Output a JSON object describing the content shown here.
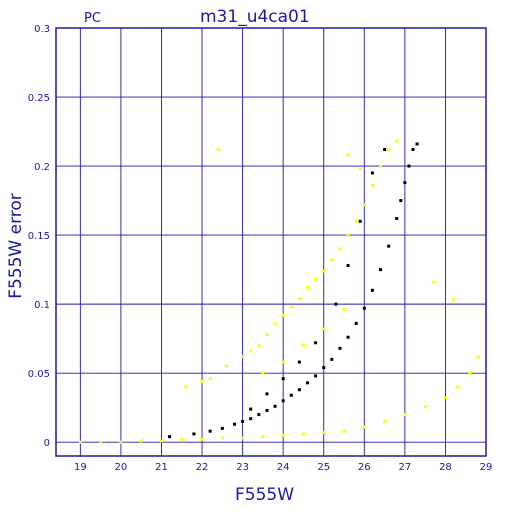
{
  "chart_data": {
    "type": "scatter",
    "title": "m31_u4ca01",
    "corner_label": "PC",
    "xlabel": "F555W",
    "ylabel": "F555W error",
    "xlim": [
      18.4,
      29.0
    ],
    "ylim": [
      -0.01,
      0.3
    ],
    "x_ticks": [
      19,
      20,
      21,
      22,
      23,
      24,
      25,
      26,
      27,
      28,
      29
    ],
    "y_ticks": [
      0,
      0.05,
      0.1,
      0.15,
      0.2,
      0.25,
      0.3
    ],
    "y_tick_labels": [
      "0",
      "0.05",
      "0.1",
      "0.15",
      "0.2",
      "0.25",
      "0.3"
    ],
    "grid": true,
    "colors": {
      "axis": "#1a1aa6",
      "grid": "#1a1aa6",
      "black_points": "#000000",
      "yellow_points": "#ffff00"
    },
    "series": [
      {
        "color": "black",
        "points": [
          [
            21.2,
            0.004
          ],
          [
            21.8,
            0.006
          ],
          [
            22.2,
            0.008
          ],
          [
            22.5,
            0.01
          ],
          [
            22.8,
            0.013
          ],
          [
            23.0,
            0.015
          ],
          [
            23.2,
            0.017
          ],
          [
            23.4,
            0.02
          ],
          [
            23.6,
            0.023
          ],
          [
            23.8,
            0.026
          ],
          [
            24.0,
            0.03
          ],
          [
            24.2,
            0.034
          ],
          [
            24.4,
            0.038
          ],
          [
            24.6,
            0.043
          ],
          [
            24.8,
            0.048
          ],
          [
            25.0,
            0.054
          ],
          [
            25.2,
            0.06
          ],
          [
            25.4,
            0.068
          ],
          [
            25.6,
            0.076
          ],
          [
            25.8,
            0.086
          ],
          [
            26.0,
            0.097
          ],
          [
            26.2,
            0.11
          ],
          [
            26.4,
            0.125
          ],
          [
            26.6,
            0.142
          ],
          [
            26.8,
            0.162
          ],
          [
            26.9,
            0.175
          ],
          [
            27.0,
            0.188
          ],
          [
            27.1,
            0.2
          ],
          [
            27.2,
            0.212
          ],
          [
            27.3,
            0.216
          ],
          [
            26.5,
            0.212
          ],
          [
            26.2,
            0.195
          ],
          [
            25.9,
            0.16
          ],
          [
            25.6,
            0.128
          ],
          [
            25.3,
            0.1
          ],
          [
            24.8,
            0.072
          ],
          [
            24.4,
            0.058
          ],
          [
            24.0,
            0.046
          ],
          [
            23.6,
            0.035
          ],
          [
            23.2,
            0.024
          ]
        ]
      },
      {
        "color": "yellow",
        "points": [
          [
            19.0,
            0.0
          ],
          [
            19.5,
            0.0
          ],
          [
            20.0,
            0.0
          ],
          [
            20.5,
            0.001
          ],
          [
            21.0,
            0.001
          ],
          [
            21.5,
            0.002
          ],
          [
            22.0,
            0.002
          ],
          [
            22.5,
            0.003
          ],
          [
            23.0,
            0.003
          ],
          [
            23.5,
            0.004
          ],
          [
            24.0,
            0.005
          ],
          [
            24.5,
            0.006
          ],
          [
            25.0,
            0.007
          ],
          [
            25.5,
            0.008
          ],
          [
            26.0,
            0.011
          ],
          [
            26.5,
            0.015
          ],
          [
            27.0,
            0.02
          ],
          [
            27.5,
            0.026
          ],
          [
            28.0,
            0.032
          ],
          [
            28.3,
            0.04
          ],
          [
            28.6,
            0.05
          ],
          [
            28.8,
            0.062
          ],
          [
            21.6,
            0.04
          ],
          [
            22.0,
            0.044
          ],
          [
            22.2,
            0.046
          ],
          [
            22.4,
            0.212
          ],
          [
            22.6,
            0.055
          ],
          [
            23.0,
            0.062
          ],
          [
            23.2,
            0.066
          ],
          [
            23.4,
            0.07
          ],
          [
            23.6,
            0.078
          ],
          [
            23.8,
            0.086
          ],
          [
            24.0,
            0.092
          ],
          [
            24.2,
            0.098
          ],
          [
            24.4,
            0.104
          ],
          [
            24.6,
            0.112
          ],
          [
            24.8,
            0.118
          ],
          [
            25.0,
            0.124
          ],
          [
            25.2,
            0.132
          ],
          [
            25.4,
            0.14
          ],
          [
            25.6,
            0.15
          ],
          [
            25.8,
            0.16
          ],
          [
            26.0,
            0.172
          ],
          [
            26.2,
            0.186
          ],
          [
            26.4,
            0.2
          ],
          [
            26.6,
            0.212
          ],
          [
            26.8,
            0.218
          ],
          [
            25.9,
            0.198
          ],
          [
            25.6,
            0.208
          ],
          [
            27.7,
            0.116
          ],
          [
            28.2,
            0.103
          ],
          [
            24.5,
            0.07
          ],
          [
            25.0,
            0.082
          ],
          [
            25.5,
            0.096
          ],
          [
            24.0,
            0.058
          ],
          [
            23.5,
            0.05
          ]
        ]
      }
    ]
  }
}
